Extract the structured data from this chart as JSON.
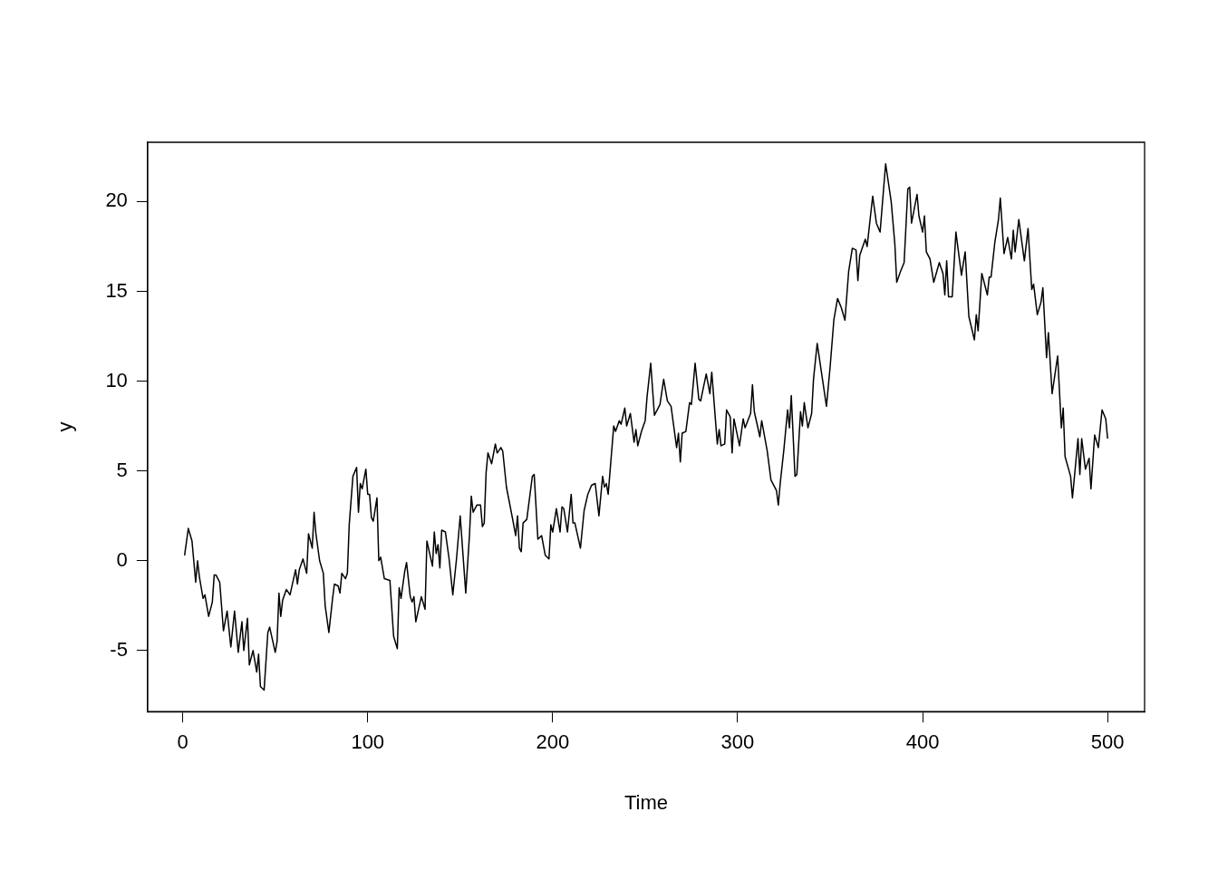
{
  "chart_data": {
    "type": "line",
    "xlabel": "Time",
    "ylabel": "y",
    "x": [
      1,
      3,
      5,
      7,
      8,
      9,
      11,
      12,
      14,
      16,
      17,
      18,
      20,
      22,
      24,
      26,
      28,
      30,
      32,
      33,
      35,
      36,
      38,
      40,
      41,
      42,
      44,
      46,
      47,
      50,
      51,
      52,
      53,
      54,
      56,
      58,
      61,
      62,
      63,
      65,
      67,
      68,
      70,
      71,
      72,
      74,
      76,
      77,
      79,
      81,
      82,
      84,
      85,
      86,
      88,
      89,
      90,
      92,
      94,
      95,
      96,
      97,
      99,
      100,
      101,
      102,
      103,
      105,
      106,
      107,
      109,
      112,
      114,
      116,
      117,
      118,
      120,
      121,
      123,
      124,
      125,
      126,
      129,
      131,
      132,
      135,
      136,
      137,
      138,
      139,
      140,
      142,
      144,
      146,
      148,
      150,
      153,
      155,
      156,
      157,
      159,
      161,
      162,
      163,
      164,
      165,
      167,
      169,
      170,
      172,
      173,
      175,
      178,
      180,
      181,
      182,
      183,
      184,
      186,
      189,
      190,
      192,
      194,
      196,
      198,
      199,
      200,
      202,
      204,
      205,
      206,
      208,
      210,
      211,
      212,
      215,
      217,
      219,
      221,
      223,
      225,
      227,
      228,
      229,
      230,
      233,
      234,
      236,
      237,
      239,
      240,
      242,
      244,
      245,
      246,
      248,
      250,
      251,
      253,
      255,
      258,
      260,
      262,
      264,
      267,
      268,
      269,
      270,
      272,
      274,
      275,
      277,
      279,
      280,
      283,
      285,
      286,
      289,
      290,
      291,
      293,
      294,
      296,
      297,
      298,
      301,
      303,
      304,
      307,
      308,
      309,
      312,
      313,
      316,
      318,
      321,
      322,
      323,
      325,
      327,
      328,
      329,
      331,
      332,
      334,
      335,
      336,
      338,
      340,
      341,
      343,
      345,
      348,
      350,
      352,
      354,
      356,
      358,
      360,
      362,
      364,
      365,
      366,
      369,
      370,
      373,
      375,
      377,
      380,
      383,
      385,
      386,
      388,
      390,
      392,
      393,
      394,
      397,
      398,
      400,
      401,
      402,
      404,
      406,
      409,
      411,
      412,
      413,
      414,
      416,
      418,
      421,
      423,
      425,
      428,
      429,
      430,
      432,
      435,
      436,
      437,
      439,
      441,
      442,
      444,
      446,
      448,
      449,
      450,
      452,
      455,
      457,
      459,
      460,
      462,
      464,
      465,
      467,
      468,
      470,
      473,
      475,
      476,
      477,
      480,
      481,
      484,
      485,
      486,
      488,
      490,
      491,
      493,
      495,
      497,
      499,
      500
    ],
    "series": [
      {
        "color": "#000000",
        "values": [
          0.3,
          1.8,
          1.1,
          -1.2,
          0,
          -0.9,
          -2.1,
          -1.9,
          -3.1,
          -2.3,
          -0.8,
          -0.8,
          -1.2,
          -3.9,
          -2.8,
          -4.8,
          -2.8,
          -5.1,
          -3.4,
          -5,
          -3.2,
          -5.8,
          -5,
          -6.2,
          -5.2,
          -7,
          -7.2,
          -4,
          -3.7,
          -5.1,
          -4.5,
          -1.8,
          -3.1,
          -2.2,
          -1.6,
          -1.9,
          -0.5,
          -1.3,
          -0.5,
          0.1,
          -0.7,
          1.5,
          0.7,
          2.7,
          1.5,
          0,
          -0.7,
          -2.5,
          -4,
          -2.1,
          -1.3,
          -1.4,
          -1.8,
          -0.7,
          -1,
          -0.7,
          2,
          4.7,
          5.2,
          2.7,
          4.3,
          4,
          5.1,
          3.7,
          3.7,
          2.4,
          2.2,
          3.5,
          0,
          0.2,
          -1,
          -1.1,
          -4.2,
          -4.9,
          -1.5,
          -2.1,
          -0.6,
          -0.1,
          -2,
          -2.3,
          -2,
          -3.4,
          -2,
          -2.7,
          1.1,
          -0.3,
          1.6,
          0.4,
          0.9,
          -0.4,
          1.7,
          1.6,
          0.1,
          -1.9,
          0.1,
          2.5,
          -1.8,
          1.4,
          3.6,
          2.7,
          3.1,
          3.1,
          1.9,
          2.1,
          4.9,
          6,
          5.4,
          6.5,
          6,
          6.3,
          6.1,
          4.1,
          2.5,
          1.4,
          2.5,
          0.7,
          0.5,
          2.1,
          2.3,
          4.7,
          4.8,
          1.2,
          1.4,
          0.3,
          0.1,
          2,
          1.6,
          2.9,
          1.6,
          3,
          2.9,
          1.6,
          3.7,
          2.1,
          2.1,
          0.7,
          2.8,
          3.7,
          4.2,
          4.3,
          2.5,
          4.7,
          4.1,
          4.3,
          3.7,
          7.5,
          7.2,
          7.8,
          7.6,
          8.5,
          7.5,
          8.2,
          6.6,
          7.3,
          6.4,
          7.2,
          7.8,
          9.1,
          11,
          8.1,
          8.7,
          10.1,
          8.9,
          8.6,
          6.3,
          7.1,
          5.5,
          7.1,
          7.2,
          8.8,
          8.7,
          11,
          9,
          8.9,
          10.4,
          9.3,
          10.5,
          6.5,
          7.3,
          6.4,
          6.5,
          8.4,
          8,
          6,
          7.9,
          6.4,
          7.9,
          7.4,
          8.2,
          9.8,
          8.3,
          6.9,
          7.8,
          6.1,
          4.5,
          3.9,
          3.1,
          4.3,
          6.2,
          8.4,
          7.4,
          9.2,
          4.7,
          4.8,
          8.3,
          7.5,
          8.8,
          7.4,
          8.2,
          10.1,
          12.1,
          10.7,
          8.6,
          10.8,
          13.4,
          14.6,
          14.1,
          13.4,
          16.1,
          17.4,
          17.3,
          15.6,
          17,
          17.9,
          17.5,
          20.3,
          18.8,
          18.3,
          22.1,
          20,
          17.6,
          15.5,
          16.1,
          16.6,
          20.7,
          20.8,
          18.8,
          20.4,
          19.2,
          18.3,
          19.2,
          17.2,
          16.8,
          15.5,
          16.6,
          16,
          14.8,
          16.7,
          14.7,
          14.7,
          18.3,
          15.9,
          17.2,
          13.6,
          12.3,
          13.7,
          12.8,
          16,
          14.8,
          15.8,
          15.8,
          17.7,
          19,
          20.2,
          17.1,
          18,
          16.8,
          18.4,
          17.2,
          19,
          16.7,
          18.5,
          15.1,
          15.4,
          13.7,
          14.4,
          15.2,
          11.3,
          12.7,
          9.3,
          11.4,
          7.4,
          8.5,
          5.8,
          4.7,
          3.5,
          6.8,
          4.8,
          6.8,
          5.1,
          5.7,
          4,
          7,
          6.3,
          8.4,
          7.9,
          6.8
        ]
      }
    ],
    "xlim": [
      -19,
      520
    ],
    "ylim": [
      -8.4,
      23.3
    ],
    "xticks": [
      0,
      100,
      200,
      300,
      400,
      500
    ],
    "yticks": [
      -5,
      0,
      5,
      10,
      15,
      20
    ],
    "grid": false,
    "legend": false,
    "marker": "none",
    "line_style": "solid"
  }
}
